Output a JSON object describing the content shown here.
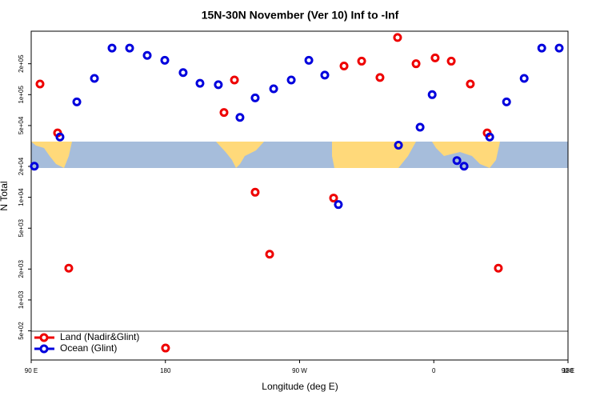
{
  "chart_data": {
    "type": "scatter",
    "title": "15N-30N November (Ver 10)   Inf to -Inf",
    "x_label": "Longitude (deg E)",
    "y_label": "N Total",
    "y_log": true,
    "legend_position": "bottom-left",
    "xlim": [
      90,
      450
    ],
    "ylim": [
      260,
      415000
    ],
    "xticks": [
      {
        "value": 90,
        "label": "90 E"
      },
      {
        "value": 180,
        "label": "180"
      },
      {
        "value": 270,
        "label": "90 W"
      },
      {
        "value": 360,
        "label": "0"
      },
      {
        "value": 450,
        "label": "90 E"
      },
      {
        "value": 540,
        "label": "180"
      }
    ],
    "yticks": [
      {
        "value": 500,
        "label": "5e+02"
      },
      {
        "value": 1000,
        "label": "1e+03"
      },
      {
        "value": 2000,
        "label": "2e+03"
      },
      {
        "value": 5000,
        "label": "5e+03"
      },
      {
        "value": 10000,
        "label": "1e+04"
      },
      {
        "value": 20000,
        "label": "2e+04"
      },
      {
        "value": 50000,
        "label": "5e+04"
      },
      {
        "value": 100000,
        "label": "1e+05"
      },
      {
        "value": 200000,
        "label": "2e+05"
      }
    ],
    "series": [
      {
        "name": "Land (Nadir&Glint)",
        "color": "#ee0000",
        "x": [
          95.9,
          107.7,
          115.2,
          180.1,
          219.3,
          226.3,
          240.2,
          249.9,
          292.8,
          299.8,
          311.6,
          323.9,
          335.7,
          348.1,
          360.9,
          371.7,
          384.5,
          395.8,
          403.3
        ],
        "values": [
          127000,
          42400,
          2040,
          340,
          67000,
          139000,
          11200,
          2790,
          9830,
          190000,
          212000,
          147000,
          360000,
          200000,
          228000,
          212000,
          127000,
          42400,
          2040
        ]
      },
      {
        "name": "Ocean (Glint)",
        "color": "#0000dd",
        "x": [
          92.1,
          109.3,
          120.6,
          132.4,
          144.2,
          156.0,
          167.8,
          179.6,
          191.9,
          203.2,
          215.5,
          230.0,
          240.2,
          252.6,
          264.4,
          276.2,
          286.9,
          296.0,
          336.3,
          350.8,
          358.9,
          375.5,
          380.3,
          397.5,
          408.8,
          420.6,
          432.4,
          444.1
        ],
        "values": [
          20100,
          38700,
          85000,
          144000,
          284000,
          284000,
          241000,
          216000,
          164000,
          129000,
          125000,
          60000,
          93000,
          114000,
          139000,
          216000,
          155000,
          8500,
          32200,
          48200,
          100000,
          22800,
          20100,
          38700,
          85000,
          144000,
          284000,
          284000
        ]
      }
    ]
  }
}
